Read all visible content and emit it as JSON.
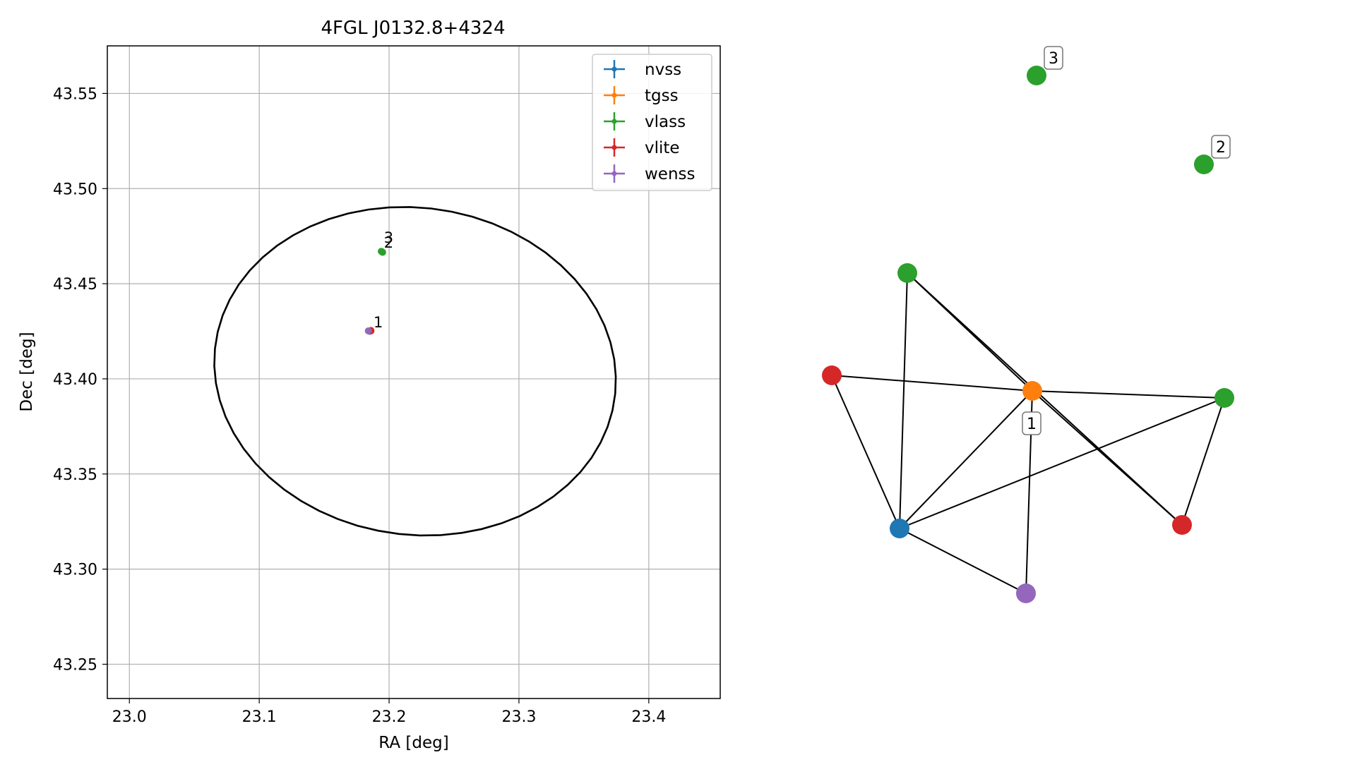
{
  "chart_data": [
    {
      "type": "scatter",
      "title": "4FGL J0132.8+4324",
      "xlabel": "RA [deg]",
      "ylabel": "Dec [deg]",
      "xlim": [
        22.983,
        23.455
      ],
      "ylim": [
        43.232,
        43.575
      ],
      "xticks": [
        23.0,
        23.1,
        23.2,
        23.3,
        23.4
      ],
      "xtick_labels": [
        "23.0",
        "23.1",
        "23.2",
        "23.3",
        "23.4"
      ],
      "yticks": [
        43.25,
        43.3,
        43.35,
        43.4,
        43.45,
        43.5,
        43.55
      ],
      "ytick_labels": [
        "43.25",
        "43.30",
        "43.35",
        "43.40",
        "43.45",
        "43.50",
        "43.55"
      ],
      "grid": true,
      "legend_position": "top-right",
      "series": [
        {
          "name": "nvss",
          "color": "#1f77b4",
          "points": [
            [
              23.185,
              43.425
            ]
          ]
        },
        {
          "name": "tgss",
          "color": "#ff7f0e",
          "points": [
            [
              23.186,
              43.4255
            ]
          ]
        },
        {
          "name": "vlass",
          "color": "#2ca02c",
          "points": [
            [
              23.194,
              43.467
            ],
            [
              23.195,
              43.4665
            ],
            [
              23.1945,
              43.4668
            ]
          ]
        },
        {
          "name": "vlite",
          "color": "#d62728",
          "points": [
            [
              23.186,
              43.4252
            ]
          ]
        },
        {
          "name": "wenss",
          "color": "#9467bd",
          "points": [
            [
              23.184,
              43.4252
            ]
          ]
        }
      ],
      "ellipse": {
        "center": [
          23.22,
          43.404
        ],
        "semi_axis_ra": 0.155,
        "semi_axis_dec": 0.086,
        "angle_deg": -6,
        "color": "#000000"
      },
      "annotations": [
        {
          "text": "1",
          "x": 23.188,
          "y": 43.427
        },
        {
          "text": "2",
          "x": 23.196,
          "y": 43.469
        },
        {
          "text": "3",
          "x": 23.196,
          "y": 43.4715
        }
      ]
    },
    {
      "type": "network",
      "nodes": [
        {
          "id": "v1",
          "color": "#2ca02c",
          "label": "3"
        },
        {
          "id": "v2",
          "color": "#2ca02c",
          "label": "2"
        },
        {
          "id": "v3",
          "color": "#2ca02c",
          "label": ""
        },
        {
          "id": "r1",
          "color": "#d62728",
          "label": ""
        },
        {
          "id": "t1",
          "color": "#ff7f0e",
          "label": "1"
        },
        {
          "id": "v4",
          "color": "#2ca02c",
          "label": ""
        },
        {
          "id": "r2",
          "color": "#d62728",
          "label": ""
        },
        {
          "id": "n1",
          "color": "#1f77b4",
          "label": ""
        },
        {
          "id": "w1",
          "color": "#9467bd",
          "label": ""
        }
      ],
      "edges": [
        [
          "v3",
          "t1"
        ],
        [
          "v3",
          "r2"
        ],
        [
          "v3",
          "n1"
        ],
        [
          "r1",
          "t1"
        ],
        [
          "r1",
          "n1"
        ],
        [
          "t1",
          "v4"
        ],
        [
          "t1",
          "n1"
        ],
        [
          "t1",
          "w1"
        ],
        [
          "t1",
          "r2"
        ],
        [
          "v4",
          "n1"
        ],
        [
          "v4",
          "r2"
        ],
        [
          "n1",
          "w1"
        ]
      ]
    }
  ]
}
